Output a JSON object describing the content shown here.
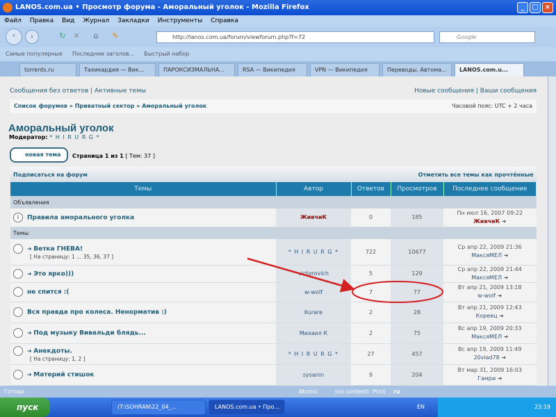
{
  "window": {
    "title": "LANOS.com.ua • Просмотр форума - Аморальный уголок - Mozilla Firefox"
  },
  "menu": [
    "Файл",
    "Правка",
    "Вид",
    "Журнал",
    "Закладки",
    "Инструменты",
    "Справка"
  ],
  "url": "http://lanos.com.ua/forum/viewforum.php?f=72",
  "search_placeholder": "Google",
  "bookmarks": [
    "Самые популярные",
    "Последние заголов...",
    "Быстрый набор"
  ],
  "tabs": [
    "torrents.ru",
    "Тахикардия — Вик...",
    "ПАРОКСИЗМАЛЬНА...",
    "RSA — Википедия",
    "VPN — Википедия",
    "Переводы. Автома...",
    "LANOS.com.u..."
  ],
  "toplinks": {
    "unanswered": "Сообщения без ответов",
    "active": "Активные темы",
    "new": "Новые сообщения",
    "yours": "Ваши сообщения",
    "sep": "|"
  },
  "breadcrumb": {
    "items": [
      "Список форумов",
      "Приватный сектор",
      "Аморальный уголок"
    ],
    "sep": "»",
    "timezone": "Часовой пояс: UTC + 2 часа"
  },
  "forum": {
    "title": "Аморальный уголок",
    "moderator_label": "Модератор:",
    "moderator": "* H I R U R G *",
    "new_topic": "новая тема",
    "page": "Страница 1 из 1",
    "count": "[ Тем: 37 ]",
    "subscribe": "Подписаться на форум",
    "mark_read": "Отметить все темы как прочтённые"
  },
  "table": {
    "headers": [
      "Темы",
      "Автор",
      "Ответов",
      "Просмотров",
      "Последнее сообщение"
    ],
    "announcements_label": "Объявления",
    "topics_label": "Темы",
    "announcements": [
      {
        "title": "Правила аморального уголка",
        "author": "ЖивчиК",
        "replies": "0",
        "views": "185",
        "last_date": "Пн июл 16, 2007 09:22",
        "last_user": "ЖивчиК"
      }
    ],
    "topics": [
      {
        "title": "Ветка ГНЕВА!",
        "pages": "[ На страницу: 1 ... 35, 36, 37 ]",
        "author": "* H I R U R G *",
        "replies": "722",
        "views": "10677",
        "last_date": "Ср апр 22, 2009 21:36",
        "last_user": "МаксяМЕЛ"
      },
      {
        "title": "Это ярко)))",
        "author": "victorovich",
        "replies": "5",
        "views": "129",
        "last_date": "Ср апр 22, 2009 21:44",
        "last_user": "МаксяМЕЛ"
      },
      {
        "title": "не спится :(",
        "author": "w-wolf",
        "replies": "7",
        "views": "77",
        "last_date": "Вт апр 21, 2009 13:18",
        "last_user": "w-wolf"
      },
      {
        "title": "Вся правда про колеса. Ненорматив :)",
        "author": "Kurare",
        "replies": "2",
        "views": "28",
        "last_date": "Вт апр 21, 2009 12:43",
        "last_user": "Кореец"
      },
      {
        "title": "Под музыку Вивальди блядь...",
        "author": "Михаил К",
        "replies": "2",
        "views": "75",
        "last_date": "Вс апр 19, 2009 20:33",
        "last_user": "МаксяМЕЛ"
      },
      {
        "title": "Анекдоты.",
        "pages": "[ На страницу: 1, 2 ]",
        "author": "* H I R U R G *",
        "replies": "27",
        "views": "457",
        "last_date": "Вс апр 19, 2009 11:49",
        "last_user": "20vlad78"
      },
      {
        "title": "Материй стишок",
        "author": "sysanin",
        "replies": "9",
        "views": "204",
        "last_date": "Вт мар 31, 2009 16:03",
        "last_user": "Гамри"
      }
    ]
  },
  "status": {
    "text": "Готово",
    "atomic": "Atomic",
    "no_context": "(no context)",
    "print": "Print",
    "lang": "ru"
  },
  "taskbar": {
    "start": "пуск",
    "items": [
      "(T:\\SOHRAN\\22_04_...",
      "LANOS.com.ua • Про..."
    ],
    "lang": "EN",
    "clock": "23:19"
  },
  "colors": {
    "accent": "#1f5e78",
    "header": "#1d7bac",
    "annotation": "#d42020"
  }
}
